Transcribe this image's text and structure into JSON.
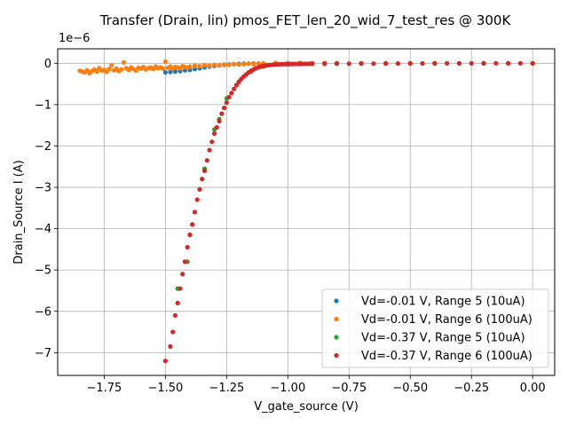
{
  "chart_data": {
    "type": "scatter",
    "title": "Transfer (Drain, lin) pmos_FET_len_20_wid_7_test_res @ 300K",
    "xlabel": "V_gate_source (V)",
    "ylabel": "Drain_Source I (A)",
    "y_offset_label": "1e−6",
    "xlim": [
      -1.94,
      0.09
    ],
    "ylim": [
      -7.55,
      0.35
    ],
    "y_scale_exponent": -6,
    "grid": true,
    "legend_position": "lower-right",
    "x_ticks": [
      -1.75,
      -1.5,
      -1.25,
      -1.0,
      -0.75,
      -0.5,
      -0.25,
      0.0
    ],
    "x_tick_labels": [
      "−1.75",
      "−1.50",
      "−1.25",
      "−1.00",
      "−0.75",
      "−0.50",
      "−0.25",
      "0.00"
    ],
    "y_ticks": [
      0,
      -1,
      -2,
      -3,
      -4,
      -5,
      -6,
      -7
    ],
    "y_tick_labels": [
      "0",
      "−1",
      "−2",
      "−3",
      "−4",
      "−5",
      "−6",
      "−7"
    ],
    "series": [
      {
        "name": "Vd=-0.01 V, Range 5 (10uA)",
        "color": "#1f77b4",
        "x": [
          -1.5,
          -1.48,
          -1.46,
          -1.44,
          -1.42,
          -1.4,
          -1.38,
          -1.36,
          -1.34,
          -1.32,
          -1.3,
          -1.28,
          -1.26,
          -1.24,
          -1.22,
          -1.2,
          -1.18,
          -1.16,
          -1.14,
          -1.12,
          -1.1,
          -1.05,
          -1.0,
          -0.9,
          -0.8,
          -0.7,
          -0.6,
          -0.5,
          -0.4,
          -0.3,
          -0.2,
          -0.1,
          0.0
        ],
        "y": [
          -0.22,
          -0.21,
          -0.2,
          -0.19,
          -0.17,
          -0.16,
          -0.14,
          -0.12,
          -0.1,
          -0.08,
          -0.06,
          -0.05,
          -0.04,
          -0.03,
          -0.02,
          -0.015,
          -0.01,
          -0.008,
          -0.006,
          -0.005,
          -0.004,
          -0.003,
          -0.002,
          -0.001,
          -0.001,
          0.0,
          0.0,
          0.0,
          0.0,
          0.0,
          0.0,
          0.0,
          0.0
        ]
      },
      {
        "name": "Vd=-0.01 V, Range 6 (100uA)",
        "color": "#ff7f0e",
        "x": [
          -1.85,
          -1.84,
          -1.83,
          -1.82,
          -1.81,
          -1.8,
          -1.79,
          -1.78,
          -1.77,
          -1.76,
          -1.75,
          -1.74,
          -1.73,
          -1.72,
          -1.71,
          -1.7,
          -1.69,
          -1.68,
          -1.67,
          -1.66,
          -1.65,
          -1.64,
          -1.63,
          -1.62,
          -1.61,
          -1.6,
          -1.59,
          -1.58,
          -1.57,
          -1.56,
          -1.55,
          -1.54,
          -1.53,
          -1.52,
          -1.51,
          -1.5,
          -1.49,
          -1.48,
          -1.47,
          -1.46,
          -1.45,
          -1.44,
          -1.43,
          -1.42,
          -1.41,
          -1.4,
          -1.38,
          -1.36,
          -1.34,
          -1.32,
          -1.3,
          -1.28,
          -1.26,
          -1.24,
          -1.22,
          -1.2,
          -1.18,
          -1.16,
          -1.14,
          -1.12,
          -1.1,
          -1.05,
          -1.0,
          -0.95,
          -0.9,
          -0.85,
          -0.8,
          -0.7,
          -0.6,
          -0.5,
          -0.4,
          -0.3,
          -0.2,
          -0.1,
          0.0
        ],
        "y": [
          -0.18,
          -0.2,
          -0.22,
          -0.17,
          -0.24,
          -0.19,
          -0.15,
          -0.2,
          -0.12,
          -0.18,
          -0.16,
          -0.21,
          -0.14,
          -0.05,
          -0.17,
          -0.13,
          -0.19,
          -0.15,
          0.02,
          -0.12,
          -0.16,
          -0.1,
          -0.14,
          -0.18,
          -0.11,
          -0.13,
          -0.09,
          -0.15,
          -0.12,
          -0.1,
          -0.14,
          -0.08,
          -0.12,
          -0.1,
          -0.13,
          0.04,
          -0.11,
          -0.08,
          -0.13,
          -0.09,
          -0.1,
          -0.12,
          -0.07,
          -0.09,
          -0.11,
          -0.08,
          -0.06,
          -0.07,
          -0.05,
          -0.06,
          -0.04,
          -0.05,
          -0.03,
          -0.04,
          -0.02,
          -0.03,
          -0.02,
          -0.01,
          -0.02,
          -0.01,
          0.0,
          0.01,
          0.0,
          0.01,
          0.0,
          0.01,
          0.0,
          0.0,
          0.0,
          0.0,
          0.0,
          0.0,
          0.0,
          0.0,
          0.0
        ]
      },
      {
        "name": "Vd=-0.37 V, Range 5 (10uA)",
        "color": "#2ca02c",
        "x": [
          -1.45,
          -1.41,
          -1.4,
          -1.39,
          -1.34,
          -1.3,
          -1.28,
          -1.25,
          -1.2,
          -1.15,
          -1.1,
          -1.0,
          -0.9,
          -0.8,
          -0.6,
          -0.4,
          -0.2,
          0.0
        ],
        "y": [
          -5.45,
          -4.8,
          -4.15,
          -3.9,
          -2.55,
          -1.6,
          -1.35,
          -0.85,
          -0.45,
          -0.2,
          -0.08,
          -0.02,
          -0.01,
          0.0,
          0.0,
          0.0,
          0.0,
          0.0
        ]
      },
      {
        "name": "Vd=-0.37 V, Range 6 (100uA)",
        "color": "#d62728",
        "x": [
          -1.5,
          -1.48,
          -1.47,
          -1.46,
          -1.45,
          -1.44,
          -1.43,
          -1.42,
          -1.41,
          -1.4,
          -1.39,
          -1.38,
          -1.37,
          -1.36,
          -1.35,
          -1.34,
          -1.33,
          -1.32,
          -1.31,
          -1.3,
          -1.29,
          -1.28,
          -1.27,
          -1.26,
          -1.25,
          -1.24,
          -1.23,
          -1.22,
          -1.21,
          -1.2,
          -1.19,
          -1.18,
          -1.17,
          -1.16,
          -1.15,
          -1.14,
          -1.13,
          -1.12,
          -1.11,
          -1.1,
          -1.09,
          -1.08,
          -1.07,
          -1.06,
          -1.05,
          -1.04,
          -1.03,
          -1.02,
          -1.01,
          -1.0,
          -0.99,
          -0.98,
          -0.97,
          -0.96,
          -0.95,
          -0.94,
          -0.93,
          -0.92,
          -0.91,
          -0.9,
          -0.85,
          -0.8,
          -0.75,
          -0.7,
          -0.65,
          -0.6,
          -0.55,
          -0.5,
          -0.45,
          -0.4,
          -0.35,
          -0.3,
          -0.25,
          -0.2,
          -0.15,
          -0.1,
          -0.05,
          0.0
        ],
        "y": [
          -7.2,
          -6.85,
          -6.5,
          -6.1,
          -5.8,
          -5.45,
          -5.1,
          -4.8,
          -4.45,
          -4.15,
          -3.9,
          -3.6,
          -3.3,
          -3.05,
          -2.8,
          -2.6,
          -2.35,
          -2.1,
          -1.9,
          -1.7,
          -1.55,
          -1.4,
          -1.22,
          -1.08,
          -0.95,
          -0.82,
          -0.72,
          -0.62,
          -0.53,
          -0.45,
          -0.38,
          -0.32,
          -0.27,
          -0.22,
          -0.18,
          -0.15,
          -0.12,
          -0.1,
          -0.08,
          -0.065,
          -0.055,
          -0.045,
          -0.04,
          -0.035,
          -0.03,
          -0.028,
          -0.025,
          -0.022,
          -0.02,
          -0.02,
          -0.018,
          -0.018,
          -0.016,
          -0.016,
          -0.015,
          -0.015,
          -0.014,
          -0.014,
          -0.013,
          -0.013,
          -0.012,
          -0.011,
          -0.01,
          -0.009,
          -0.008,
          -0.007,
          -0.006,
          -0.005,
          -0.004,
          -0.003,
          -0.002,
          -0.002,
          -0.001,
          -0.001,
          0.0,
          0.0,
          0.0,
          0.0
        ]
      }
    ]
  }
}
